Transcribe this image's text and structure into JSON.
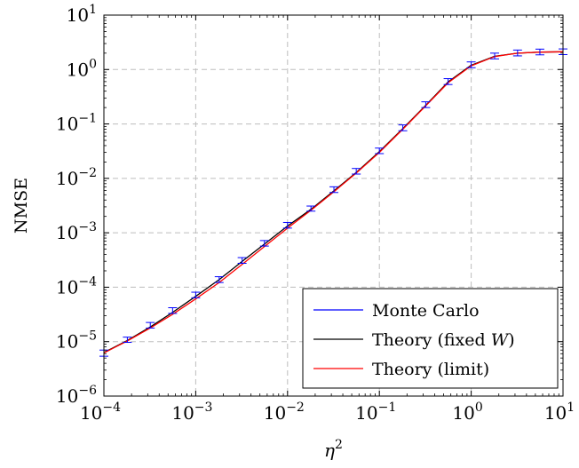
{
  "chart_data": {
    "type": "line",
    "xlabel": "η",
    "xlabel_sup": "2",
    "ylabel": "NMSE",
    "x_scale": "log",
    "y_scale": "log",
    "xlim": [
      0.0001,
      10
    ],
    "ylim": [
      1e-06,
      10
    ],
    "x_ticks": [
      {
        "base": "10",
        "exp": "−4",
        "value": 0.0001
      },
      {
        "base": "10",
        "exp": "−3",
        "value": 0.001
      },
      {
        "base": "10",
        "exp": "−2",
        "value": 0.01
      },
      {
        "base": "10",
        "exp": "−1",
        "value": 0.1
      },
      {
        "base": "10",
        "exp": "0",
        "value": 1
      },
      {
        "base": "10",
        "exp": "1",
        "value": 10
      }
    ],
    "y_ticks": [
      {
        "base": "10",
        "exp": "−6",
        "value": 1e-06
      },
      {
        "base": "10",
        "exp": "−5",
        "value": 1e-05
      },
      {
        "base": "10",
        "exp": "−4",
        "value": 0.0001
      },
      {
        "base": "10",
        "exp": "−3",
        "value": 0.001
      },
      {
        "base": "10",
        "exp": "−2",
        "value": 0.01
      },
      {
        "base": "10",
        "exp": "−1",
        "value": 0.1
      },
      {
        "base": "10",
        "exp": "0",
        "value": 1
      },
      {
        "base": "10",
        "exp": "1",
        "value": 10
      }
    ],
    "grid": true,
    "legend_position": "bottom-right",
    "series": [
      {
        "name": "Monte Carlo",
        "color": "#0000ff",
        "style": "errorbars",
        "points": [
          {
            "x": 0.0001,
            "y": 6.2e-06,
            "err_lo": 5.4e-06,
            "err_hi": 7e-06
          },
          {
            "x": 0.00018,
            "y": 1.08e-05,
            "err_lo": 9.7e-06,
            "err_hi": 1.21e-05
          },
          {
            "x": 0.00032,
            "y": 2e-05,
            "err_lo": 1.78e-05,
            "err_hi": 2.25e-05
          },
          {
            "x": 0.00056,
            "y": 3.7e-05,
            "err_lo": 3.3e-05,
            "err_hi": 4.2e-05
          },
          {
            "x": 0.001,
            "y": 7.2e-05,
            "err_lo": 6.4e-05,
            "err_hi": 8.1e-05
          },
          {
            "x": 0.0018,
            "y": 0.000138,
            "err_lo": 0.000122,
            "err_hi": 0.000156
          },
          {
            "x": 0.0032,
            "y": 0.00031,
            "err_lo": 0.000275,
            "err_hi": 0.00035
          },
          {
            "x": 0.0056,
            "y": 0.00064,
            "err_lo": 0.00057,
            "err_hi": 0.00072
          },
          {
            "x": 0.01,
            "y": 0.00137,
            "err_lo": 0.00122,
            "err_hi": 0.00155
          },
          {
            "x": 0.018,
            "y": 0.0028,
            "err_lo": 0.0025,
            "err_hi": 0.0031
          },
          {
            "x": 0.032,
            "y": 0.0062,
            "err_lo": 0.0055,
            "err_hi": 0.007
          },
          {
            "x": 0.056,
            "y": 0.0135,
            "err_lo": 0.012,
            "err_hi": 0.0152
          },
          {
            "x": 0.1,
            "y": 0.032,
            "err_lo": 0.0285,
            "err_hi": 0.036
          },
          {
            "x": 0.18,
            "y": 0.085,
            "err_lo": 0.075,
            "err_hi": 0.096
          },
          {
            "x": 0.32,
            "y": 0.225,
            "err_lo": 0.2,
            "err_hi": 0.255
          },
          {
            "x": 0.56,
            "y": 0.6,
            "err_lo": 0.53,
            "err_hi": 0.68
          },
          {
            "x": 1,
            "y": 1.22,
            "err_lo": 1.08,
            "err_hi": 1.38
          },
          {
            "x": 1.8,
            "y": 1.78,
            "err_lo": 1.57,
            "err_hi": 2.0
          },
          {
            "x": 3.2,
            "y": 2.02,
            "err_lo": 1.78,
            "err_hi": 2.28
          },
          {
            "x": 5.6,
            "y": 2.1,
            "err_lo": 1.86,
            "err_hi": 2.37
          },
          {
            "x": 10,
            "y": 2.12,
            "err_lo": 1.88,
            "err_hi": 2.39
          }
        ]
      },
      {
        "name": "Theory (fixed W)",
        "name_prefix": "Theory (fixed ",
        "name_var": "W",
        "name_suffix": ")",
        "color": "#000000",
        "style": "line",
        "points": [
          {
            "x": 0.0001,
            "y": 6.3e-06
          },
          {
            "x": 0.00018,
            "y": 1.05e-05
          },
          {
            "x": 0.00032,
            "y": 1.86e-05
          },
          {
            "x": 0.00056,
            "y": 3.45e-05
          },
          {
            "x": 0.001,
            "y": 6.8e-05
          },
          {
            "x": 0.0018,
            "y": 0.000138
          },
          {
            "x": 0.0032,
            "y": 0.000298
          },
          {
            "x": 0.0056,
            "y": 0.00062
          },
          {
            "x": 0.01,
            "y": 0.00133
          },
          {
            "x": 0.018,
            "y": 0.0027
          },
          {
            "x": 0.032,
            "y": 0.0059
          },
          {
            "x": 0.056,
            "y": 0.0128
          },
          {
            "x": 0.1,
            "y": 0.031
          },
          {
            "x": 0.18,
            "y": 0.082
          },
          {
            "x": 0.32,
            "y": 0.22
          },
          {
            "x": 0.56,
            "y": 0.59
          },
          {
            "x": 1,
            "y": 1.2
          },
          {
            "x": 1.8,
            "y": 1.75
          },
          {
            "x": 3.2,
            "y": 2.0
          },
          {
            "x": 5.6,
            "y": 2.09
          },
          {
            "x": 10,
            "y": 2.12
          }
        ]
      },
      {
        "name": "Theory (limit)",
        "color": "#ff0000",
        "style": "line",
        "points": [
          {
            "x": 0.0001,
            "y": 6.2e-06
          },
          {
            "x": 0.00018,
            "y": 1.03e-05
          },
          {
            "x": 0.00032,
            "y": 1.78e-05
          },
          {
            "x": 0.00056,
            "y": 3.18e-05
          },
          {
            "x": 0.001,
            "y": 6.1e-05
          },
          {
            "x": 0.0018,
            "y": 0.000122
          },
          {
            "x": 0.0032,
            "y": 0.000262
          },
          {
            "x": 0.0056,
            "y": 0.00056
          },
          {
            "x": 0.01,
            "y": 0.00122
          },
          {
            "x": 0.018,
            "y": 0.0026
          },
          {
            "x": 0.032,
            "y": 0.0057
          },
          {
            "x": 0.056,
            "y": 0.0125
          },
          {
            "x": 0.1,
            "y": 0.03
          },
          {
            "x": 0.18,
            "y": 0.08
          },
          {
            "x": 0.32,
            "y": 0.215
          },
          {
            "x": 0.56,
            "y": 0.57
          },
          {
            "x": 1,
            "y": 1.17
          },
          {
            "x": 1.8,
            "y": 1.73
          },
          {
            "x": 3.2,
            "y": 2.0
          },
          {
            "x": 5.6,
            "y": 2.09
          },
          {
            "x": 10,
            "y": 2.12
          }
        ]
      }
    ]
  }
}
